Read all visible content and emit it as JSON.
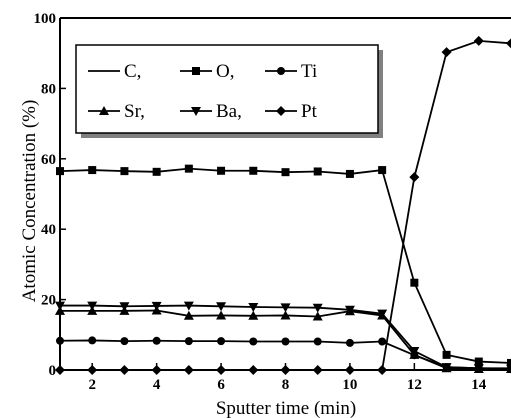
{
  "chart_data": {
    "type": "line",
    "xlabel": "Sputter time (min)",
    "ylabel": "Atomic Concentration (%)",
    "xlim": [
      1,
      15
    ],
    "ylim": [
      0,
      100
    ],
    "xticks": [
      2,
      4,
      6,
      8,
      10,
      12,
      14
    ],
    "yticks": [
      0,
      20,
      40,
      60,
      80,
      100
    ],
    "legend_position": "top-left",
    "legend_rows": [
      [
        {
          "series": "C",
          "label": "C,"
        },
        {
          "series": "O",
          "label": "O,"
        },
        {
          "series": "Ti",
          "label": "Ti"
        }
      ],
      [
        {
          "series": "Sr",
          "label": "Sr,"
        },
        {
          "series": "Ba",
          "label": "Ba,"
        },
        {
          "series": "Pt",
          "label": "Pt"
        }
      ]
    ],
    "series": [
      {
        "name": "C",
        "marker": "none",
        "x": [
          1,
          2,
          3,
          4,
          5,
          6,
          7,
          8,
          9,
          10,
          11,
          12,
          13,
          14,
          15
        ],
        "y": [
          0,
          0,
          0,
          0,
          0,
          0,
          0,
          0,
          0,
          0,
          0,
          0,
          0,
          0,
          0
        ]
      },
      {
        "name": "O",
        "marker": "square",
        "x": [
          1,
          2,
          3,
          4,
          5,
          6,
          7,
          8,
          9,
          10,
          11,
          12,
          13,
          14,
          15
        ],
        "y": [
          56.5,
          56.8,
          56.5,
          56.3,
          57.2,
          56.6,
          56.6,
          56.2,
          56.4,
          55.7,
          56.8,
          24.8,
          4.3,
          2.4,
          2.0
        ]
      },
      {
        "name": "Ti",
        "marker": "circle",
        "x": [
          1,
          2,
          3,
          4,
          5,
          6,
          7,
          8,
          9,
          10,
          11,
          12,
          13,
          14,
          15
        ],
        "y": [
          8.3,
          8.4,
          8.2,
          8.3,
          8.2,
          8.2,
          8.1,
          8.1,
          8.1,
          7.7,
          8.1,
          4.2,
          0.8,
          0.5,
          0.5
        ]
      },
      {
        "name": "Sr",
        "marker": "triangle-up",
        "x": [
          1,
          2,
          3,
          4,
          5,
          6,
          7,
          8,
          9,
          10,
          11,
          12,
          13,
          14,
          15
        ],
        "y": [
          16.8,
          16.8,
          16.8,
          16.9,
          15.4,
          15.5,
          15.4,
          15.5,
          15.2,
          16.7,
          15.5,
          4.3,
          0.5,
          0.3,
          0.3
        ]
      },
      {
        "name": "Ba",
        "marker": "triangle-down",
        "x": [
          1,
          2,
          3,
          4,
          5,
          6,
          7,
          8,
          9,
          10,
          11,
          12,
          13,
          14,
          15
        ],
        "y": [
          18.3,
          18.3,
          18.1,
          18.2,
          18.3,
          18.1,
          17.9,
          17.8,
          17.7,
          17.1,
          16.0,
          5.4,
          0.8,
          0.5,
          0.4
        ]
      },
      {
        "name": "Pt",
        "marker": "diamond",
        "x": [
          1,
          2,
          3,
          4,
          5,
          6,
          7,
          8,
          9,
          10,
          11,
          12,
          13,
          14,
          15
        ],
        "y": [
          0,
          0,
          0,
          0,
          0,
          0,
          0,
          0,
          0,
          0,
          0,
          54.8,
          90.3,
          93.5,
          92.8
        ]
      }
    ]
  }
}
